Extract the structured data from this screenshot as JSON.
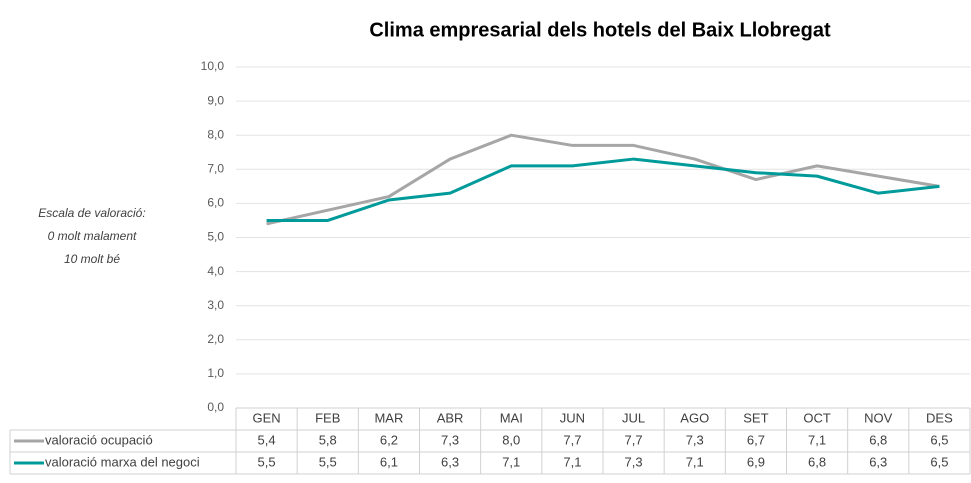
{
  "chart_data": {
    "type": "line",
    "title": "Clima empresarial  dels hotels del Baix Llobregat",
    "ylabel": [
      "Escala de valoració:",
      "0 molt malament",
      "10 molt bé"
    ],
    "categories": [
      "GEN",
      "FEB",
      "MAR",
      "ABR",
      "MAI",
      "JUN",
      "JUL",
      "AGO",
      "SET",
      "OCT",
      "NOV",
      "DES"
    ],
    "series": [
      {
        "name": "valoració ocupació",
        "color": "#a6a6a6",
        "values": [
          5.4,
          5.8,
          6.2,
          7.3,
          8.0,
          7.7,
          7.7,
          7.3,
          6.7,
          7.1,
          6.8,
          6.5
        ],
        "value_labels": [
          "5,4",
          "5,8",
          "6,2",
          "7,3",
          "8,0",
          "7,7",
          "7,7",
          "7,3",
          "6,7",
          "7,1",
          "6,8",
          "6,5"
        ]
      },
      {
        "name": "valoració marxa del negoci",
        "color": "#009a9a",
        "values": [
          5.5,
          5.5,
          6.1,
          6.3,
          7.1,
          7.1,
          7.3,
          7.1,
          6.9,
          6.8,
          6.3,
          6.5
        ],
        "value_labels": [
          "5,5",
          "5,5",
          "6,1",
          "6,3",
          "7,1",
          "7,1",
          "7,3",
          "7,1",
          "6,9",
          "6,8",
          "6,3",
          "6,5"
        ]
      }
    ],
    "ylim": [
      0,
      10
    ],
    "yticks": [
      {
        "value": 0,
        "label": "0,0"
      },
      {
        "value": 1,
        "label": "1,0"
      },
      {
        "value": 2,
        "label": "2,0"
      },
      {
        "value": 3,
        "label": "3,0"
      },
      {
        "value": 4,
        "label": "4,0"
      },
      {
        "value": 5,
        "label": "5,0"
      },
      {
        "value": 6,
        "label": "6,0"
      },
      {
        "value": 7,
        "label": "7,0"
      },
      {
        "value": 8,
        "label": "8,0"
      },
      {
        "value": 9,
        "label": "9,0"
      },
      {
        "value": 10,
        "label": "10,0"
      }
    ],
    "grid": true
  }
}
